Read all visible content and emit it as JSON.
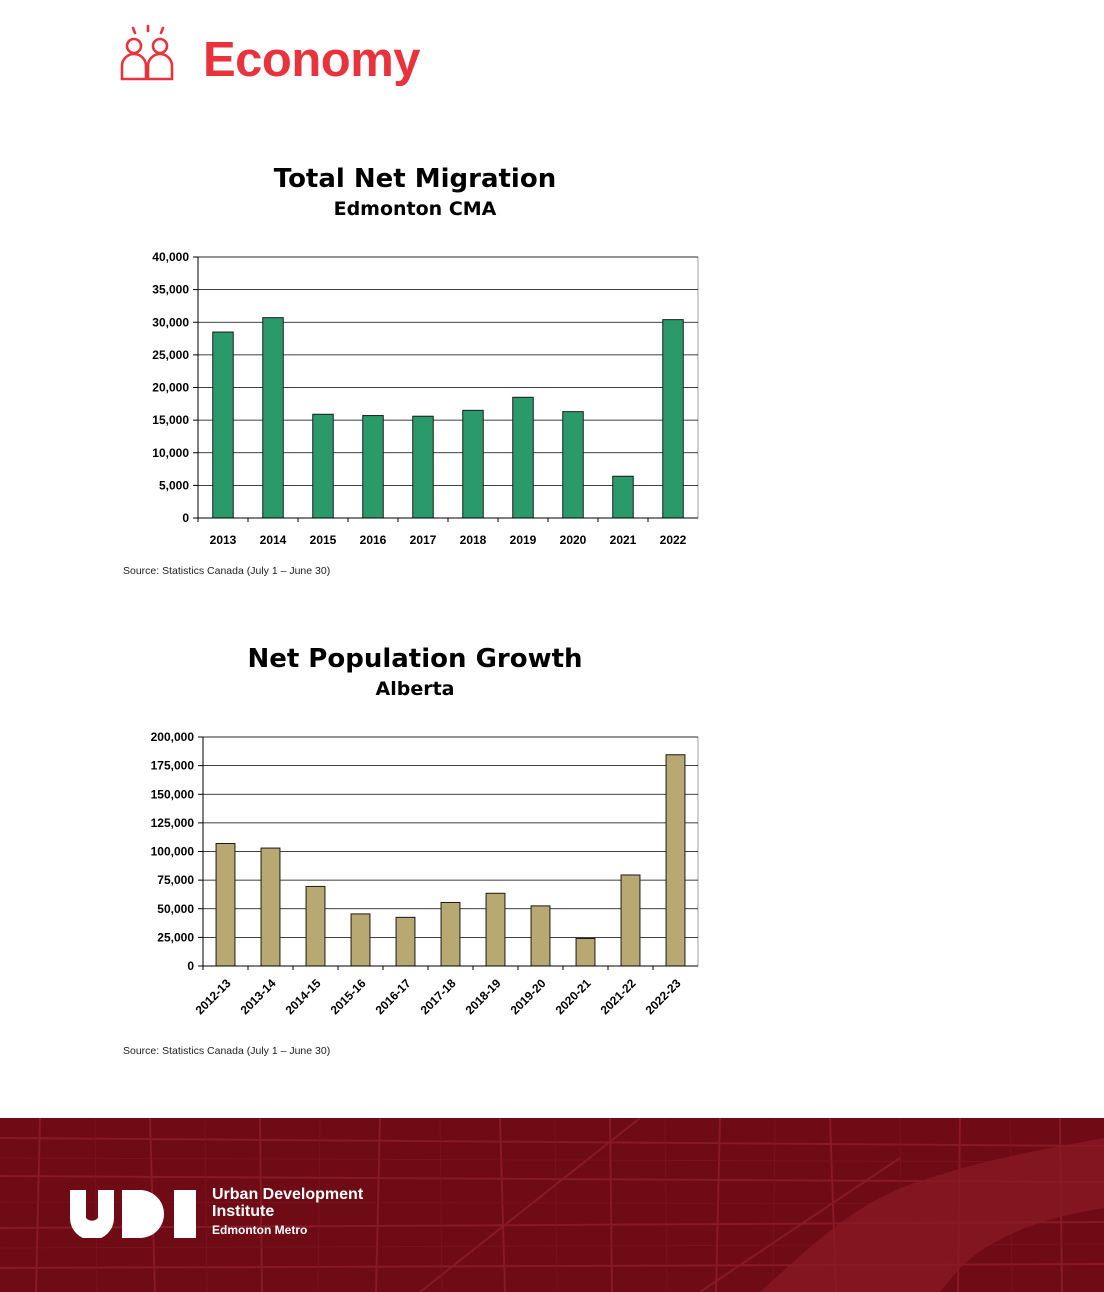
{
  "header": {
    "title": "Economy",
    "icon": "people-icon",
    "accent_color": "#e8333c"
  },
  "chart_data": [
    {
      "type": "bar",
      "title": "Total Net Migration",
      "subtitle": "Edmonton CMA",
      "categories": [
        "2013",
        "2014",
        "2015",
        "2016",
        "2017",
        "2018",
        "2019",
        "2020",
        "2021",
        "2022"
      ],
      "values": [
        28500,
        30700,
        15900,
        15700,
        15600,
        16500,
        18500,
        16300,
        6400,
        30400
      ],
      "ylim": [
        0,
        40000
      ],
      "yticks": [
        0,
        5000,
        10000,
        15000,
        20000,
        25000,
        30000,
        35000,
        40000
      ],
      "ytick_labels": [
        "0",
        "5,000",
        "10,000",
        "15,000",
        "20,000",
        "25,000",
        "30,000",
        "35,000",
        "40,000"
      ],
      "grid": true,
      "bar_color": "#2a9a6a",
      "source": "Source: Statistics Canada (July 1 – June 30)"
    },
    {
      "type": "bar",
      "title": "Net Population Growth",
      "subtitle": "Alberta",
      "categories": [
        "2012-13",
        "2013-14",
        "2014-15",
        "2015-16",
        "2016-17",
        "2017-18",
        "2018-19",
        "2019-20",
        "2020-21",
        "2021-22",
        "2022-23"
      ],
      "values": [
        107000,
        103000,
        69500,
        45500,
        42500,
        55500,
        63500,
        52500,
        24000,
        79500,
        184500
      ],
      "ylim": [
        0,
        200000
      ],
      "yticks": [
        0,
        25000,
        50000,
        75000,
        100000,
        125000,
        150000,
        175000,
        200000
      ],
      "ytick_labels": [
        "0",
        "25,000",
        "50,000",
        "75,000",
        "100,000",
        "125,000",
        "150,000",
        "175,000",
        "200,000"
      ],
      "grid": true,
      "bar_color": "#b8a872",
      "source": "Source: Statistics Canada (July 1 – June 30)"
    }
  ],
  "footer": {
    "logo_letters": "UDI",
    "org_line1": "Urban Development",
    "org_line2": "Institute",
    "org_line3": "Edmonton Metro",
    "background_color": "#6e0b14"
  }
}
